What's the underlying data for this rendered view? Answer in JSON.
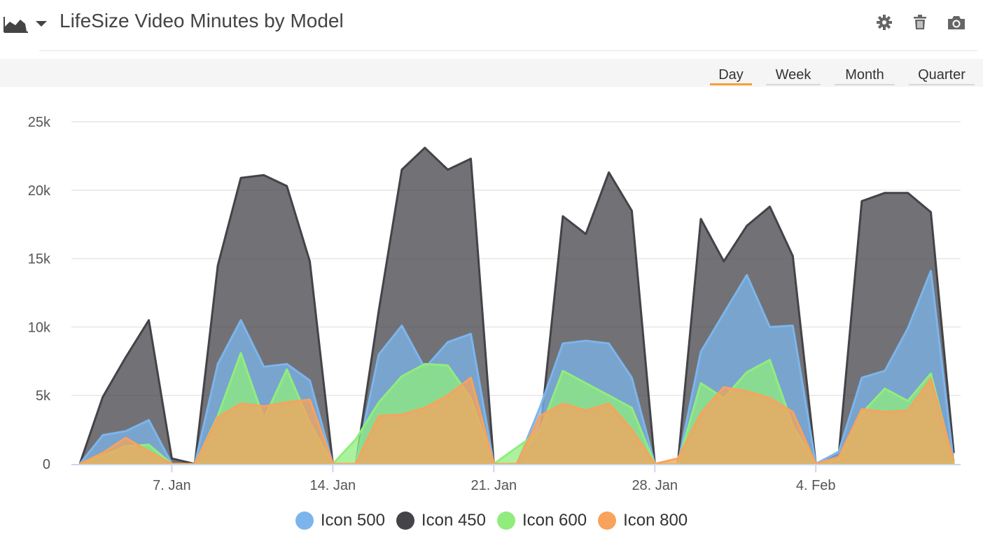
{
  "header": {
    "title": "LifeSize Video Minutes by Model",
    "chart_type_icon": "area-chart-icon",
    "tools": [
      "gear-icon",
      "trash-icon",
      "camera-icon"
    ]
  },
  "ranges": [
    {
      "label": "Day",
      "active": true
    },
    {
      "label": "Week",
      "active": false
    },
    {
      "label": "Month",
      "active": false
    },
    {
      "label": "Quarter",
      "active": false
    }
  ],
  "chart_data": {
    "type": "area",
    "title": "LifeSize Video Minutes by Model",
    "x_start": "2020-01-03",
    "x_step_days": 1,
    "x_ticks": [
      "7. Jan",
      "14. Jan",
      "21. Jan",
      "28. Jan",
      "4. Feb"
    ],
    "y_ticks": [
      "0",
      "5k",
      "10k",
      "15k",
      "20k",
      "25k"
    ],
    "ylim": [
      0,
      25000
    ],
    "grid": true,
    "legend_placement": "bottom-center",
    "series": [
      {
        "name": "Icon 500",
        "color": "#7cb5ec",
        "values": [
          0,
          2100,
          2400,
          3200,
          0,
          0,
          7300,
          10500,
          7100,
          7300,
          6100,
          0,
          0,
          8000,
          10100,
          7000,
          8900,
          9500,
          0,
          0,
          4100,
          8800,
          9000,
          8800,
          6300,
          0,
          0,
          8200,
          11000,
          13800,
          10000,
          10100,
          0,
          900,
          6300,
          6800,
          9900,
          14100,
          0
        ]
      },
      {
        "name": "Icon 450",
        "color": "#434348",
        "values": [
          0,
          4900,
          7800,
          10500,
          400,
          0,
          14500,
          20900,
          21100,
          20300,
          14800,
          0,
          0,
          11200,
          21500,
          23100,
          21500,
          22300,
          0,
          0,
          2000,
          18100,
          16800,
          21300,
          18500,
          0,
          0,
          17900,
          14800,
          17400,
          18800,
          15200,
          0,
          700,
          19200,
          19800,
          19800,
          18400,
          800
        ]
      },
      {
        "name": "Icon 600",
        "color": "#90ed7d",
        "values": [
          0,
          600,
          1300,
          1400,
          0,
          0,
          3500,
          8100,
          3300,
          6900,
          3000,
          0,
          1800,
          4500,
          6400,
          7300,
          7200,
          4800,
          0,
          1200,
          2400,
          6800,
          5900,
          5000,
          4100,
          0,
          0,
          5900,
          4800,
          6700,
          7600,
          2800,
          0,
          300,
          3700,
          5500,
          4600,
          6600,
          0
        ]
      },
      {
        "name": "Icon 800",
        "color": "#f7a35c",
        "values": [
          0,
          800,
          1900,
          900,
          0,
          0,
          3400,
          4400,
          4200,
          4500,
          4700,
          0,
          0,
          3500,
          3600,
          4100,
          5000,
          6300,
          0,
          0,
          3500,
          4400,
          3900,
          4400,
          2500,
          0,
          400,
          3700,
          5600,
          5300,
          4800,
          3800,
          0,
          500,
          4000,
          3800,
          3900,
          6200,
          200
        ]
      }
    ]
  },
  "legend": [
    {
      "label": "Icon 500",
      "color": "#7cb5ec"
    },
    {
      "label": "Icon 450",
      "color": "#434348"
    },
    {
      "label": "Icon 600",
      "color": "#90ed7d"
    },
    {
      "label": "Icon 800",
      "color": "#f7a35c"
    }
  ]
}
